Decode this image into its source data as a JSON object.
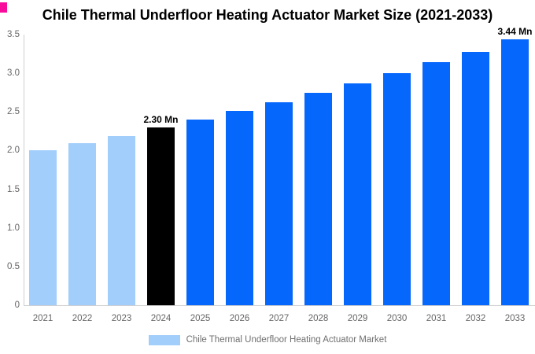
{
  "chart_data": {
    "type": "bar",
    "title": "Chile Thermal Underfloor Heating Actuator Market Size (2021-2033)",
    "categories": [
      "2021",
      "2022",
      "2023",
      "2024",
      "2025",
      "2026",
      "2027",
      "2028",
      "2029",
      "2030",
      "2031",
      "2032",
      "2033"
    ],
    "values": [
      2.0,
      2.1,
      2.19,
      2.3,
      2.4,
      2.51,
      2.62,
      2.75,
      2.87,
      3.0,
      3.14,
      3.28,
      3.44
    ],
    "unit": "Mn",
    "bar_colors": [
      "#A2CEFB",
      "#A2CEFB",
      "#A2CEFB",
      "#000000",
      "#0667FC",
      "#0667FC",
      "#0667FC",
      "#0667FC",
      "#0667FC",
      "#0667FC",
      "#0667FC",
      "#0667FC",
      "#0667FC"
    ],
    "point_labels": [
      "",
      "",
      "",
      "2.30 Mn",
      "",
      "",
      "",
      "",
      "",
      "",
      "",
      "",
      "3.44 Mn"
    ],
    "xlabel": "",
    "ylabel": "",
    "ylim": [
      0,
      3.5
    ],
    "ytick_labels": [
      "3.5",
      "3.0",
      "2.5",
      "2.0",
      "1.5",
      "1.0",
      "0.5",
      "0"
    ],
    "grid": false,
    "legend": {
      "position": "bottom",
      "entries": [
        {
          "label": "Chile Thermal Underfloor Heating Actuator Market",
          "color": "#A2CEFB"
        }
      ]
    }
  },
  "colors": {
    "past_bar": "#A2CEFB",
    "highlight_bar": "#000000",
    "forecast_bar": "#0667FC",
    "axis_line": "#CFCFCF",
    "axis_text": "#666666",
    "point_label_text": "#000000",
    "legend_text": "#6E6E6E",
    "title_text": "#000000",
    "corner_mark": "#F80C9C",
    "background": "#FFFFFF"
  }
}
